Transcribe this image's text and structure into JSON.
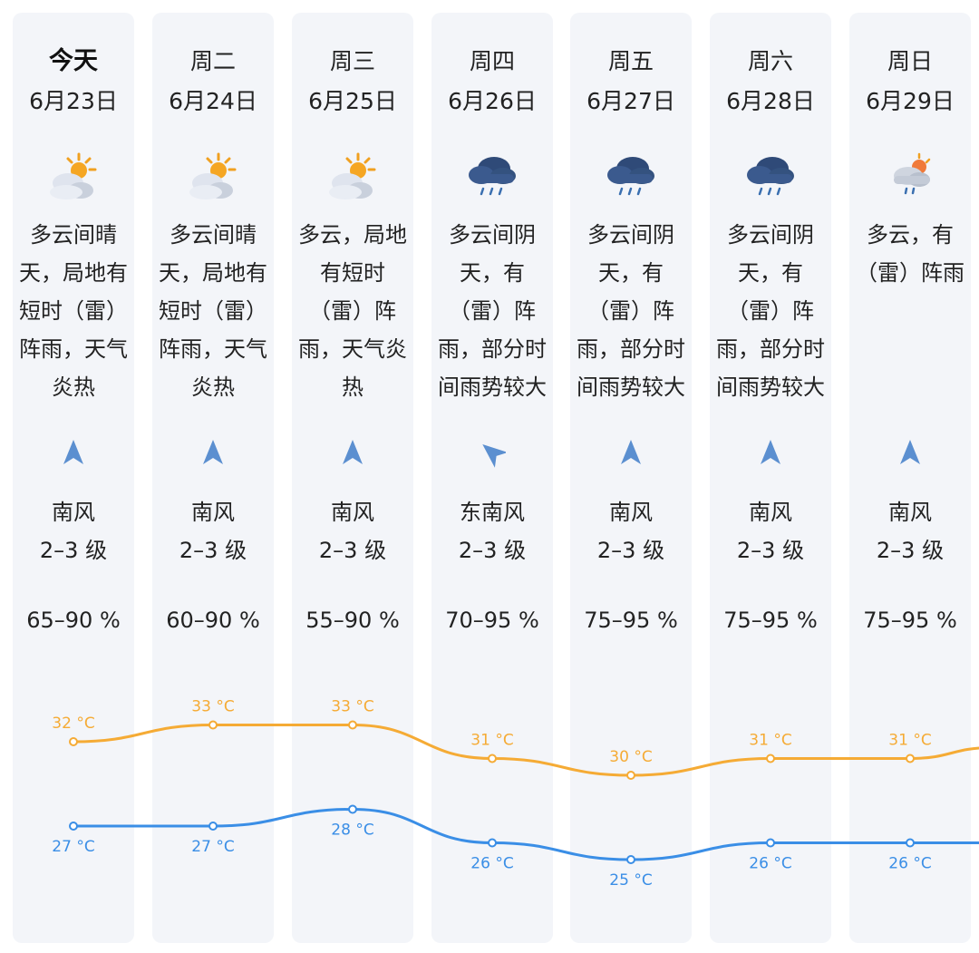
{
  "days": [
    {
      "day": "今天",
      "date": "6月23日",
      "icon": "partly-cloudy-sun-icon",
      "desc": "多云间晴\n天，局地有\n短时（雷）\n阵雨，天气\n炎热",
      "wind_dir": "南风",
      "wind_dir_icon": "arrow-north-icon",
      "wind_level": "2–3 级",
      "humidity": "65–90 %",
      "high_label": "32 °C",
      "low_label": "27 °C"
    },
    {
      "day": "周二",
      "date": "6月24日",
      "icon": "partly-cloudy-sun-icon",
      "desc": "多云间晴\n天，局地有\n短时（雷）\n阵雨，天气\n炎热",
      "wind_dir": "南风",
      "wind_dir_icon": "arrow-north-icon",
      "wind_level": "2–3 级",
      "humidity": "60–90 %",
      "high_label": "33 °C",
      "low_label": "27 °C"
    },
    {
      "day": "周三",
      "date": "6月25日",
      "icon": "partly-cloudy-sun-icon",
      "desc": "多云，局地\n有短时\n（雷）阵\n雨，天气炎\n热",
      "wind_dir": "南风",
      "wind_dir_icon": "arrow-north-icon",
      "wind_level": "2–3 级",
      "humidity": "55–90 %",
      "high_label": "33 °C",
      "low_label": "28 °C"
    },
    {
      "day": "周四",
      "date": "6月26日",
      "icon": "rain-cloud-icon",
      "desc": "多云间阴\n天，有\n（雷）阵\n雨，部分时\n间雨势较大",
      "wind_dir": "东南风",
      "wind_dir_icon": "arrow-northwest-icon",
      "wind_level": "2–3 级",
      "humidity": "70–95 %",
      "high_label": "31 °C",
      "low_label": "26 °C"
    },
    {
      "day": "周五",
      "date": "6月27日",
      "icon": "rain-cloud-icon",
      "desc": "多云间阴\n天，有\n（雷）阵\n雨，部分时\n间雨势较大",
      "wind_dir": "南风",
      "wind_dir_icon": "arrow-north-icon",
      "wind_level": "2–3 级",
      "humidity": "75–95 %",
      "high_label": "30 °C",
      "low_label": "25 °C"
    },
    {
      "day": "周六",
      "date": "6月28日",
      "icon": "rain-cloud-icon",
      "desc": "多云间阴\n天，有\n（雷）阵\n雨，部分时\n间雨势较大",
      "wind_dir": "南风",
      "wind_dir_icon": "arrow-north-icon",
      "wind_level": "2–3 级",
      "humidity": "75–95 %",
      "high_label": "31 °C",
      "low_label": "26 °C"
    },
    {
      "day": "周日",
      "date": "6月29日",
      "icon": "cloud-sun-rain-icon",
      "desc": "多云，有\n（雷）阵雨",
      "wind_dir": "南风",
      "wind_dir_icon": "arrow-north-icon",
      "wind_level": "2–3 级",
      "humidity": "75–95 %",
      "high_label": "31 °C",
      "low_label": "26 °C"
    }
  ],
  "chart_data": {
    "type": "line",
    "categories": [
      "今天",
      "周二",
      "周三",
      "周四",
      "周五",
      "周六",
      "周日"
    ],
    "series": [
      {
        "values": [
          32,
          33,
          33,
          31,
          30,
          31,
          31
        ],
        "color": "#f5ab35"
      },
      {
        "values": [
          27,
          27,
          28,
          26,
          25,
          26,
          26
        ],
        "color": "#3a8ee6"
      }
    ],
    "unit": "°C"
  },
  "colors": {
    "high": "#f5ab35",
    "low": "#3a8ee6",
    "column_bg": "#f3f5f9",
    "arrow": "#5b8fd0"
  }
}
